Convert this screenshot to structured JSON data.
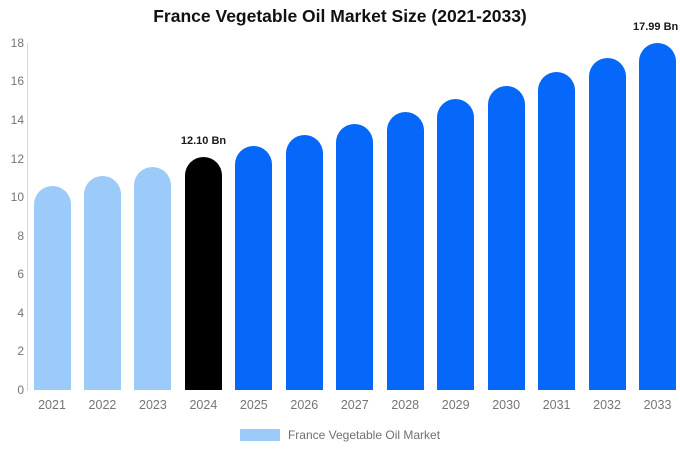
{
  "chart_data": {
    "type": "bar",
    "title": "France Vegetable Oil Market Size (2021-2033)",
    "categories": [
      "2021",
      "2022",
      "2023",
      "2024",
      "2025",
      "2026",
      "2027",
      "2028",
      "2029",
      "2030",
      "2031",
      "2032",
      "2033"
    ],
    "values": [
      10.6,
      11.08,
      11.58,
      12.1,
      12.65,
      13.22,
      13.81,
      14.43,
      15.08,
      15.76,
      16.47,
      17.22,
      17.99
    ],
    "unit": "Bn",
    "ylim": [
      0,
      18
    ],
    "ytick_step": 2,
    "grid": false,
    "legend_position": "bottom",
    "legend": [
      "France Vegetable Oil Market"
    ],
    "bar_groups": [
      "historical",
      "historical",
      "historical",
      "base_year",
      "forecast",
      "forecast",
      "forecast",
      "forecast",
      "forecast",
      "forecast",
      "forecast",
      "forecast",
      "forecast"
    ],
    "annotations": [
      {
        "category": "2024",
        "text": "12.10 Bn"
      },
      {
        "category": "2033",
        "text": "17.99 Bn"
      }
    ]
  },
  "colors": {
    "historical": "#9CCBFA",
    "base_year": "#000000",
    "forecast": "#0667FB",
    "title_text": "#111111",
    "axis_text": "#757575",
    "legend_text": "#6E7075",
    "axis_line": "#D6D6D6",
    "annotation_text": "#1A1A1A",
    "background": "#FFFFFF"
  }
}
